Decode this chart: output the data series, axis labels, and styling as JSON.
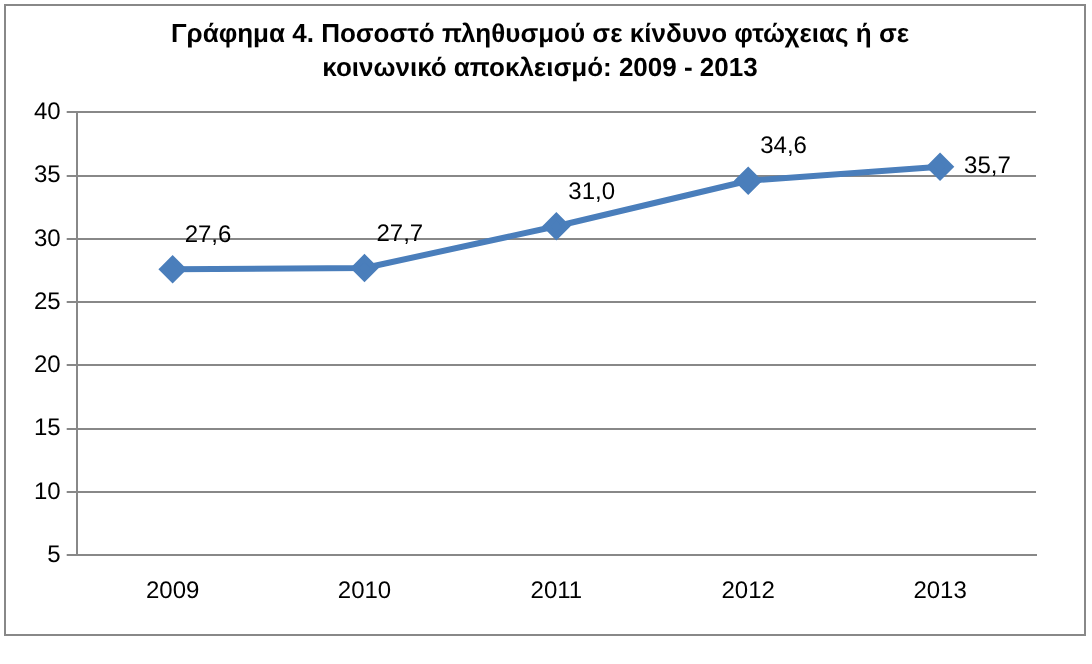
{
  "chart_data": {
    "type": "line",
    "title": "Γράφημα 4. Ποσοστό πληθυσμού σε κίνδυνο φτώχειας ή σε κοινωνικό αποκλεισμό: 2009 - 2013",
    "categories": [
      "2009",
      "2010",
      "2011",
      "2012",
      "2013"
    ],
    "series": [
      {
        "color": "#4a7ebb",
        "values": [
          27.6,
          27.7,
          31.0,
          34.6,
          35.7
        ],
        "value_labels": [
          "27,6",
          "27,7",
          "31,0",
          "34,6",
          "35,7"
        ]
      }
    ],
    "ylim": [
      5,
      40
    ],
    "yticks": [
      5,
      10,
      15,
      20,
      25,
      30,
      35,
      40
    ],
    "grid": "y",
    "legend": false,
    "marker": "diamond",
    "line_style": "solid"
  }
}
